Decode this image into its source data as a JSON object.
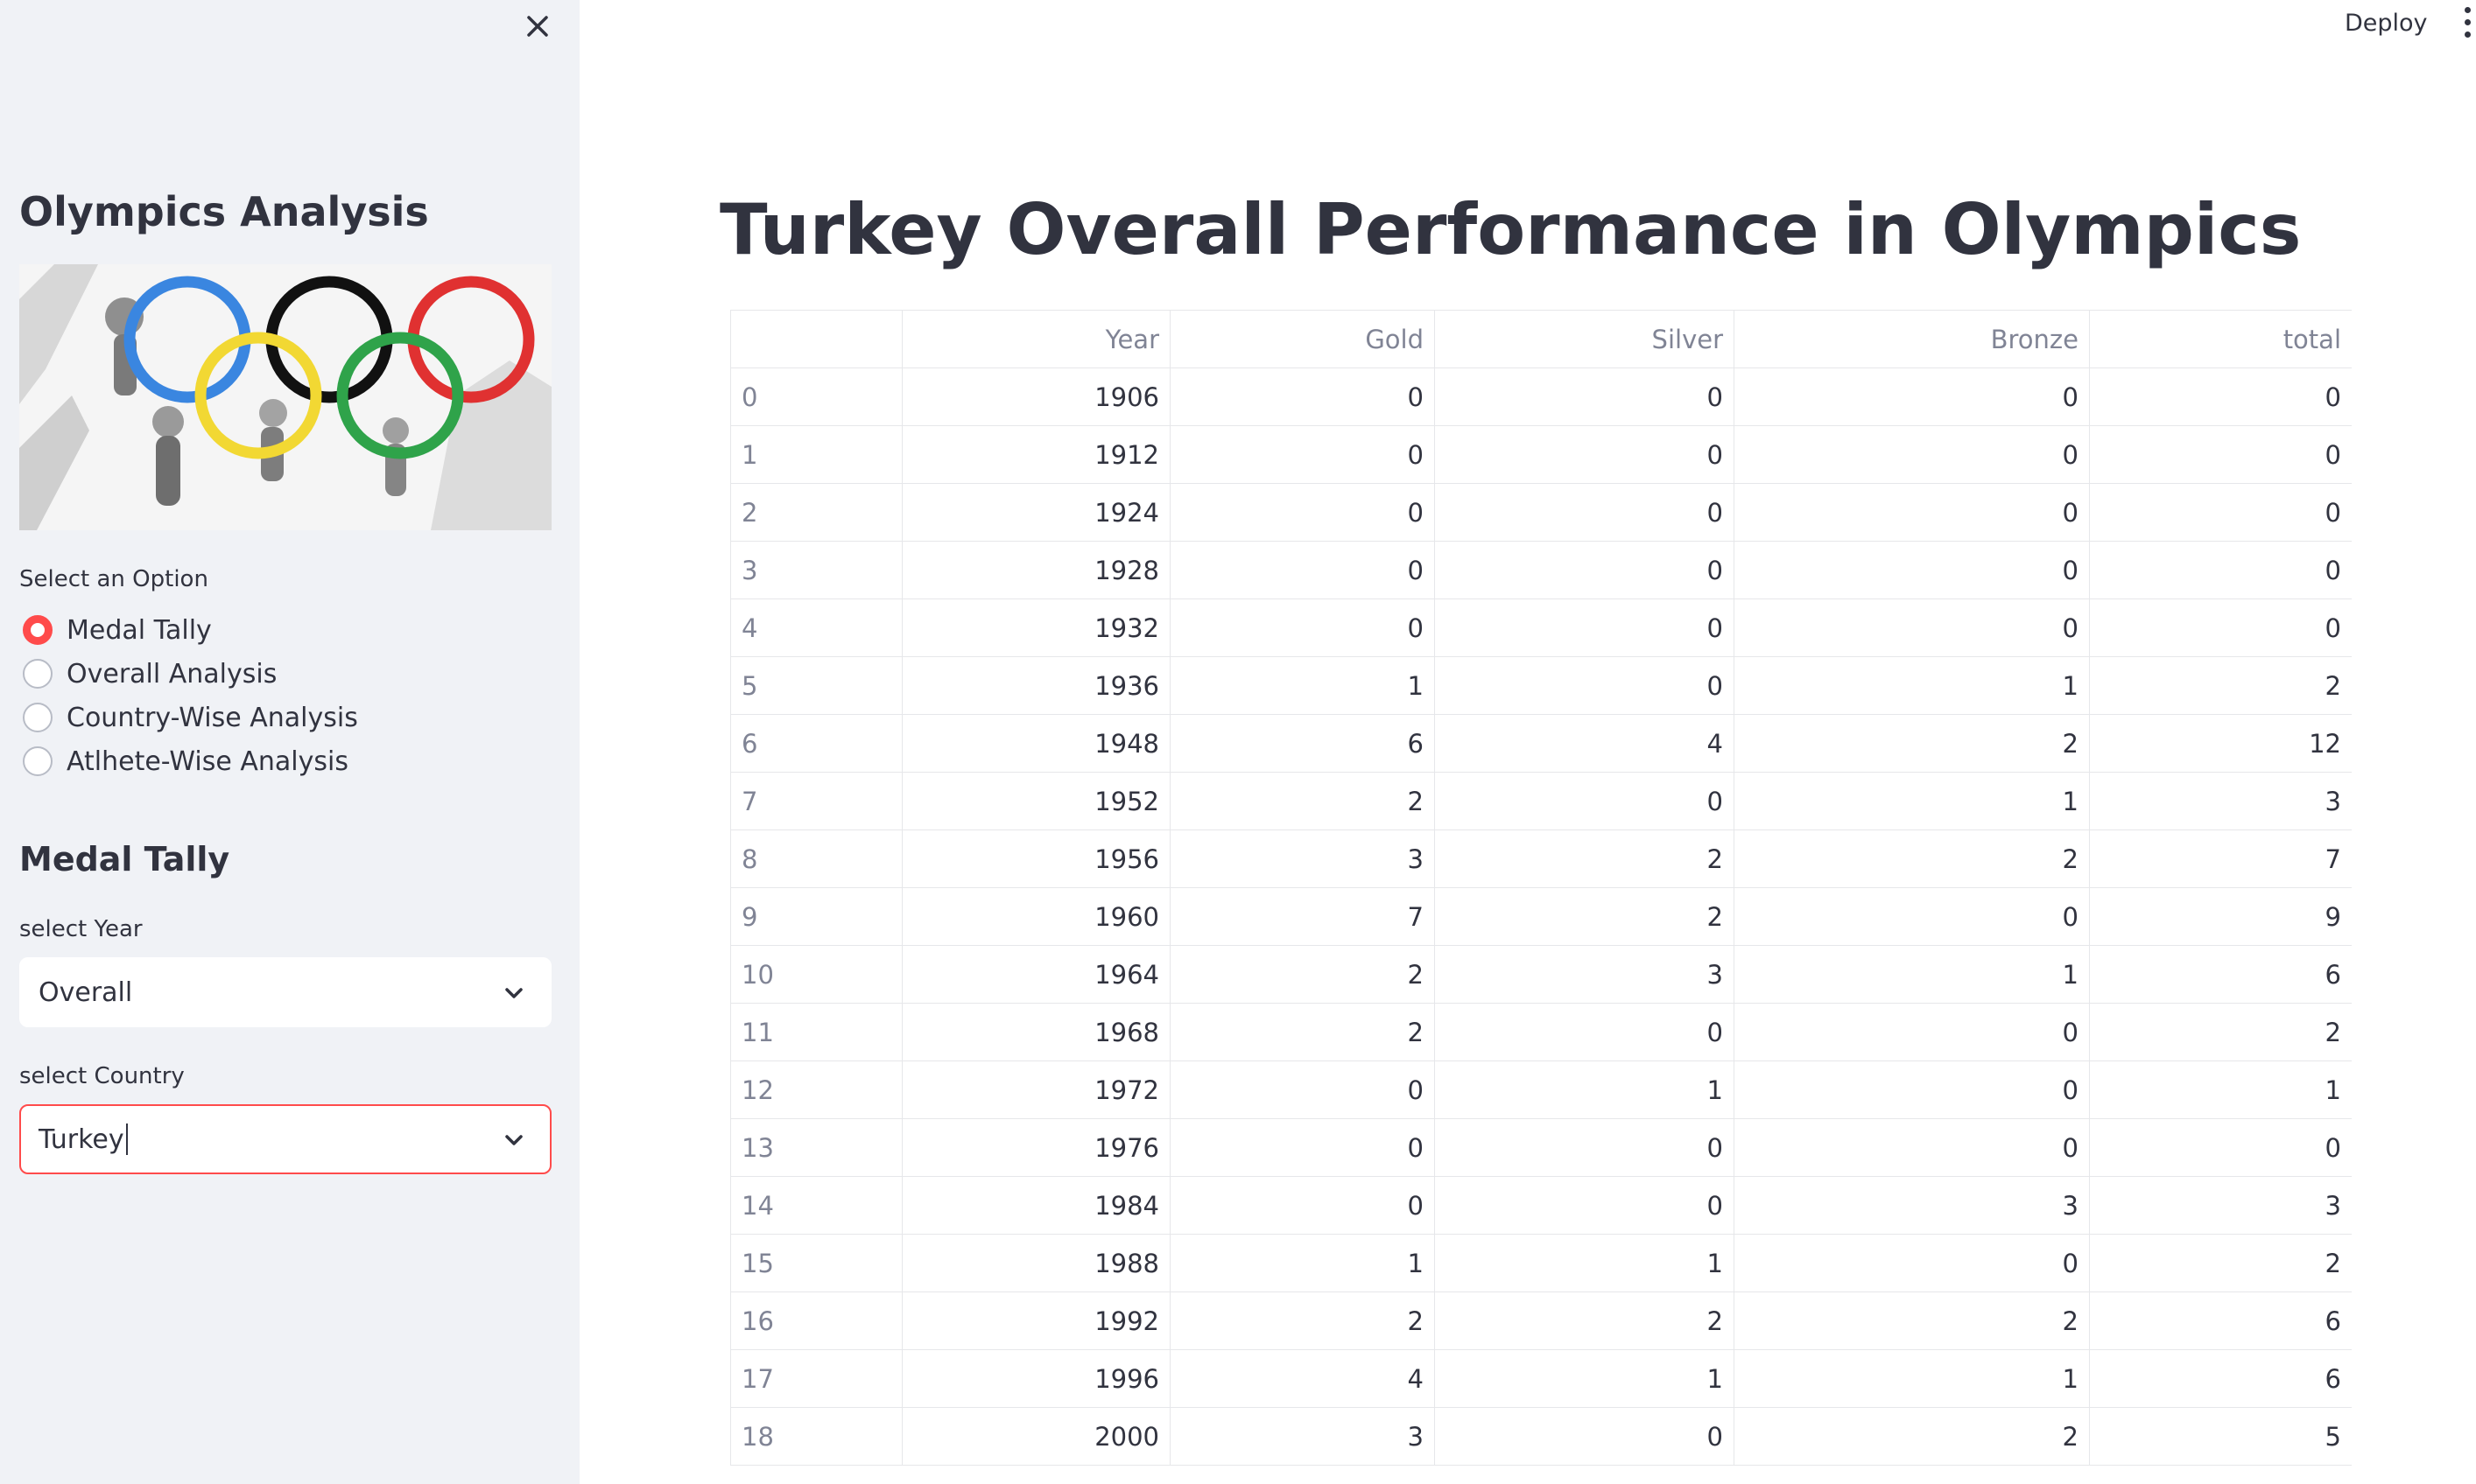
{
  "header": {
    "deploy_label": "Deploy"
  },
  "sidebar": {
    "title": "Olympics Analysis",
    "option_label": "Select an Option",
    "options": [
      {
        "label": "Medal Tally",
        "selected": true
      },
      {
        "label": "Overall Analysis",
        "selected": false
      },
      {
        "label": "Country-Wise Analysis",
        "selected": false
      },
      {
        "label": "Atlhete-Wise Analysis",
        "selected": false
      }
    ],
    "subheader": "Medal Tally",
    "year_select": {
      "label": "select Year",
      "value": "Overall"
    },
    "country_select": {
      "label": "select Country",
      "value": "Turkey"
    }
  },
  "main": {
    "title": "Turkey Overall Performance in Olympics",
    "table": {
      "columns": [
        "",
        "Year",
        "Gold",
        "Silver",
        "Bronze",
        "total"
      ],
      "rows": [
        [
          "0",
          "1906",
          "0",
          "0",
          "0",
          "0"
        ],
        [
          "1",
          "1912",
          "0",
          "0",
          "0",
          "0"
        ],
        [
          "2",
          "1924",
          "0",
          "0",
          "0",
          "0"
        ],
        [
          "3",
          "1928",
          "0",
          "0",
          "0",
          "0"
        ],
        [
          "4",
          "1932",
          "0",
          "0",
          "0",
          "0"
        ],
        [
          "5",
          "1936",
          "1",
          "0",
          "1",
          "2"
        ],
        [
          "6",
          "1948",
          "6",
          "4",
          "2",
          "12"
        ],
        [
          "7",
          "1952",
          "2",
          "0",
          "1",
          "3"
        ],
        [
          "8",
          "1956",
          "3",
          "2",
          "2",
          "7"
        ],
        [
          "9",
          "1960",
          "7",
          "2",
          "0",
          "9"
        ],
        [
          "10",
          "1964",
          "2",
          "3",
          "1",
          "6"
        ],
        [
          "11",
          "1968",
          "2",
          "0",
          "0",
          "2"
        ],
        [
          "12",
          "1972",
          "0",
          "1",
          "0",
          "1"
        ],
        [
          "13",
          "1976",
          "0",
          "0",
          "0",
          "0"
        ],
        [
          "14",
          "1984",
          "0",
          "0",
          "3",
          "3"
        ],
        [
          "15",
          "1988",
          "1",
          "1",
          "0",
          "2"
        ],
        [
          "16",
          "1992",
          "2",
          "2",
          "2",
          "6"
        ],
        [
          "17",
          "1996",
          "4",
          "1",
          "1",
          "6"
        ],
        [
          "18",
          "2000",
          "3",
          "0",
          "2",
          "5"
        ]
      ]
    }
  },
  "colors": {
    "accent": "#ff4b4b",
    "sidebar_bg": "#f0f2f6",
    "text": "#31333f",
    "muted_text": "#808495",
    "grid": "#e6e7ea"
  }
}
